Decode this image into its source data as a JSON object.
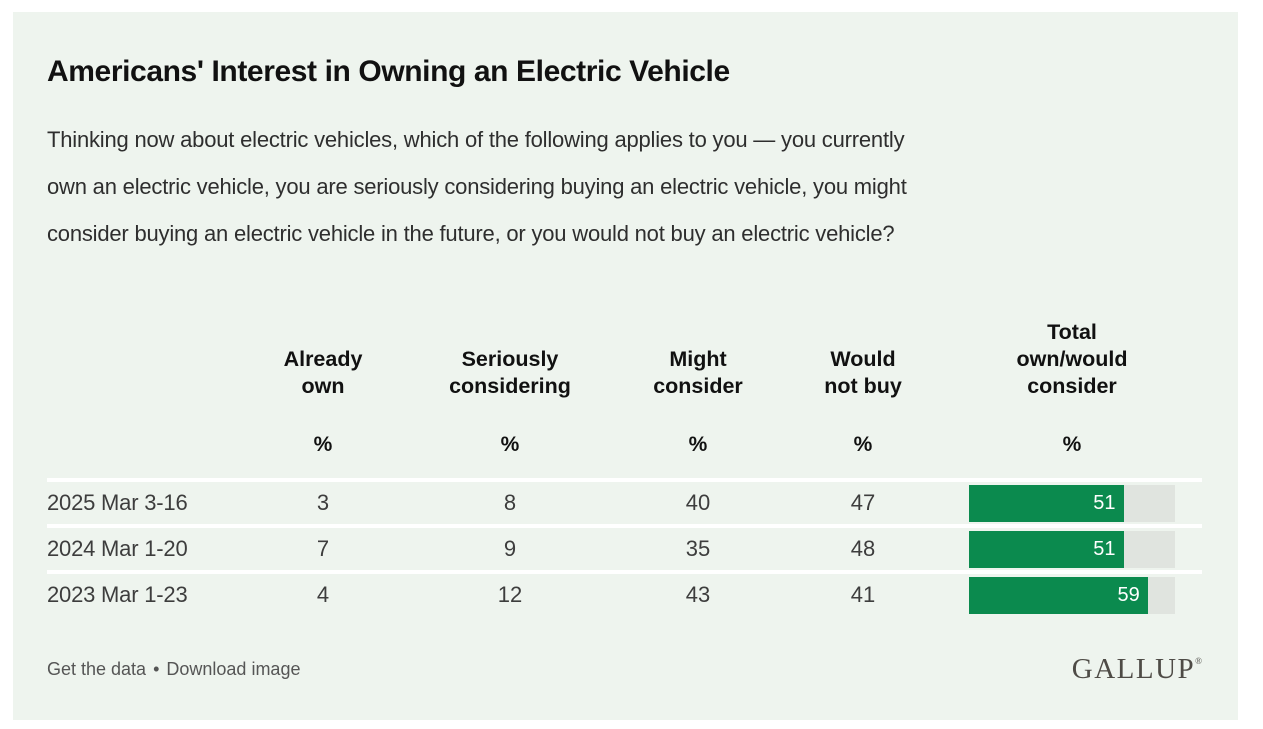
{
  "header": {
    "title": "Americans' Interest in Owning an Electric Vehicle",
    "question_lines": [
      "Thinking now about electric vehicles, which of the following applies to you — you currently",
      "own an electric vehicle, you are seriously considering buying an electric vehicle, you might",
      "consider buying an electric vehicle in the future, or you would not buy an electric vehicle?"
    ]
  },
  "table": {
    "columns": [
      {
        "label": "Already\nown"
      },
      {
        "label": "Seriously\nconsidering"
      },
      {
        "label": "Might\nconsider"
      },
      {
        "label": "Would\nnot buy"
      },
      {
        "label": "Total\nown/would\nconsider"
      }
    ],
    "unit": "%",
    "bar_axis_max": 68,
    "bar_color": "#0b8a4e",
    "bar_track_color": "#e0e4df",
    "rows": [
      {
        "label": "2025 Mar 3-16",
        "already_own": 3,
        "seriously_considering": 8,
        "might_consider": 40,
        "would_not_buy": 47,
        "total": 51
      },
      {
        "label": "2024 Mar 1-20",
        "already_own": 7,
        "seriously_considering": 9,
        "might_consider": 35,
        "would_not_buy": 48,
        "total": 51
      },
      {
        "label": "2023 Mar 1-23",
        "already_own": 4,
        "seriously_considering": 12,
        "might_consider": 43,
        "would_not_buy": 41,
        "total": 59
      }
    ]
  },
  "footer": {
    "links": [
      {
        "label": "Get the data"
      },
      {
        "label": "Download image"
      }
    ],
    "separator": "•",
    "logo": "GALLUP",
    "logo_mark": "®"
  },
  "chart_data": {
    "type": "table",
    "title": "Americans' Interest in Owning an Electric Vehicle",
    "subtitle": "Thinking now about electric vehicles, which of the following applies to you — you currently own an electric vehicle, you are seriously considering buying an electric vehicle, you might consider buying an electric vehicle in the future, or you would not buy an electric vehicle?",
    "unit": "%",
    "categories": [
      "2025 Mar 3-16",
      "2024 Mar 1-20",
      "2023 Mar 1-23"
    ],
    "series": [
      {
        "name": "Already own",
        "values": [
          3,
          7,
          4
        ]
      },
      {
        "name": "Seriously considering",
        "values": [
          8,
          9,
          12
        ]
      },
      {
        "name": "Might consider",
        "values": [
          40,
          35,
          43
        ]
      },
      {
        "name": "Would not buy",
        "values": [
          47,
          48,
          41
        ]
      },
      {
        "name": "Total own/would consider",
        "values": [
          51,
          51,
          59
        ],
        "display": "bar",
        "color": "#0b8a4e",
        "bar_axis_max": 68
      }
    ],
    "legend_position": "none",
    "grid": false,
    "source": "GALLUP"
  }
}
